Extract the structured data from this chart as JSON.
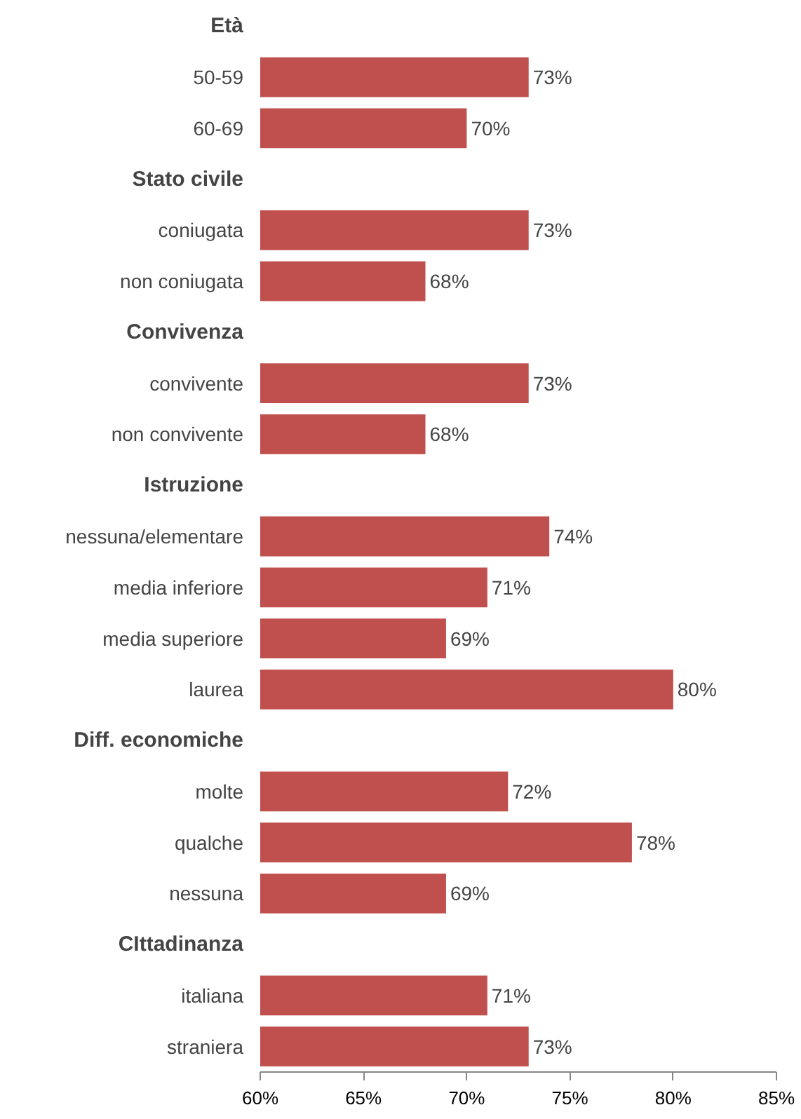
{
  "chart_data": {
    "type": "bar",
    "orientation": "horizontal",
    "color": "#c0504d",
    "categories": [
      "Età",
      "50-59",
      "60-69",
      "Stato civile",
      "coniugata",
      "non coniugata",
      "Convivenza",
      "convivente",
      "non convivente",
      "Istruzione",
      "nessuna/elementare",
      "media inferiore",
      "media superiore",
      "laurea",
      "Diff. economiche",
      "molte",
      "qualche",
      "nessuna",
      "CIttadinanza",
      "italiana",
      "straniera"
    ],
    "values": [
      null,
      73,
      70,
      null,
      73,
      68,
      null,
      73,
      68,
      null,
      74,
      71,
      69,
      80,
      null,
      72,
      78,
      69,
      null,
      71,
      73
    ],
    "value_labels": [
      null,
      "73%",
      "70%",
      null,
      "73%",
      "68%",
      null,
      "73%",
      "68%",
      null,
      "74%",
      "71%",
      "69%",
      "80%",
      null,
      "72%",
      "78%",
      "69%",
      null,
      "71%",
      "73%"
    ],
    "xlim": [
      60,
      85
    ],
    "xticks": [
      {
        "value": 60,
        "label": "60%"
      },
      {
        "value": 65,
        "label": "65%"
      },
      {
        "value": 70,
        "label": "70%"
      },
      {
        "value": 75,
        "label": "75%"
      },
      {
        "value": 80,
        "label": "80%"
      },
      {
        "value": 85,
        "label": "85%"
      }
    ],
    "grid": false
  }
}
